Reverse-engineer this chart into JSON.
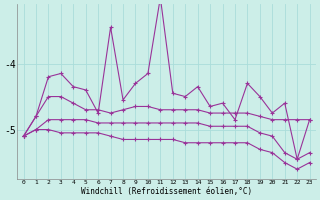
{
  "xlabel": "Windchill (Refroidissement éolien,°C)",
  "background_color": "#cceee8",
  "grid_color": "#aaddda",
  "line_color": "#993399",
  "x": [
    0,
    1,
    2,
    3,
    4,
    5,
    6,
    7,
    8,
    9,
    10,
    11,
    12,
    13,
    14,
    15,
    16,
    17,
    18,
    19,
    20,
    21,
    22,
    23
  ],
  "series1": [
    -5.1,
    -4.8,
    -4.2,
    -4.15,
    -4.35,
    -4.4,
    -4.75,
    -3.45,
    -4.55,
    -4.3,
    -4.15,
    -3.0,
    -4.45,
    -4.5,
    -4.35,
    -4.65,
    -4.6,
    -4.85,
    -4.3,
    -4.5,
    -4.75,
    -4.6,
    -5.45,
    -4.85
  ],
  "series2": [
    -5.1,
    -4.8,
    -4.5,
    -4.5,
    -4.6,
    -4.7,
    -4.7,
    -4.75,
    -4.7,
    -4.65,
    -4.65,
    -4.7,
    -4.7,
    -4.7,
    -4.7,
    -4.75,
    -4.75,
    -4.75,
    -4.75,
    -4.8,
    -4.85,
    -4.85,
    -4.85,
    -4.85
  ],
  "series3": [
    -5.1,
    -5.0,
    -4.85,
    -4.85,
    -4.85,
    -4.85,
    -4.9,
    -4.9,
    -4.9,
    -4.9,
    -4.9,
    -4.9,
    -4.9,
    -4.9,
    -4.9,
    -4.95,
    -4.95,
    -4.95,
    -4.95,
    -5.05,
    -5.1,
    -5.35,
    -5.45,
    -5.35
  ],
  "series4": [
    -5.1,
    -5.0,
    -5.0,
    -5.05,
    -5.05,
    -5.05,
    -5.05,
    -5.1,
    -5.15,
    -5.15,
    -5.15,
    -5.15,
    -5.15,
    -5.2,
    -5.2,
    -5.2,
    -5.2,
    -5.2,
    -5.2,
    -5.3,
    -5.35,
    -5.5,
    -5.6,
    -5.5
  ],
  "ylim": [
    -5.75,
    -3.1
  ],
  "yticks": [
    -5,
    -4
  ],
  "xlim": [
    -0.5,
    23.5
  ],
  "figwidth": 3.2,
  "figheight": 2.0,
  "dpi": 100
}
